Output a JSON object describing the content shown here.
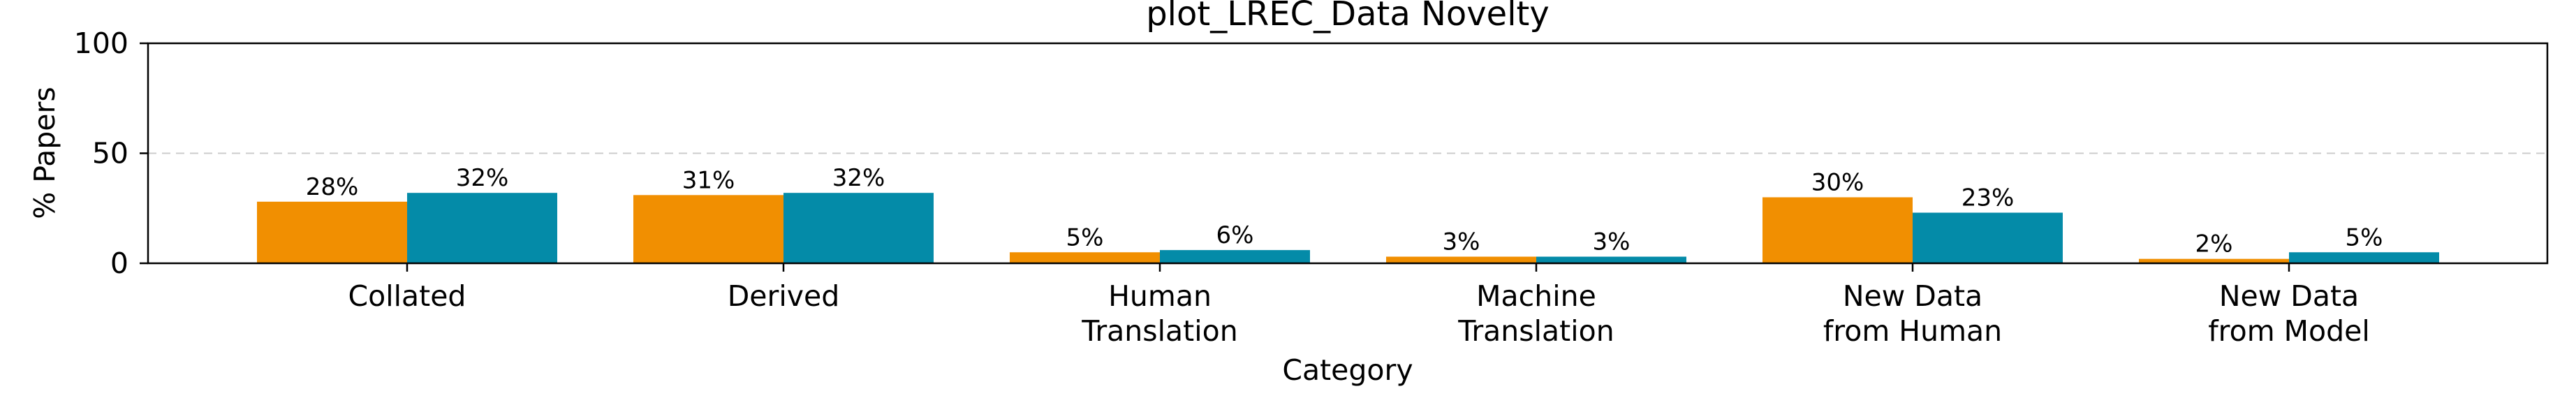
{
  "chart_data": {
    "type": "bar",
    "title": "plot_LREC_Data Novelty",
    "xlabel": "Category",
    "ylabel": "% Papers",
    "ylim": [
      0,
      100
    ],
    "yticks": [
      0,
      50,
      100
    ],
    "grid": "dashed horizontal at 50",
    "categories": [
      [
        "Collated"
      ],
      [
        "Derived"
      ],
      [
        "Human",
        "Translation"
      ],
      [
        "Machine",
        "Translation"
      ],
      [
        "New Data",
        "from Human"
      ],
      [
        "New Data",
        "from Model"
      ]
    ],
    "series": [
      {
        "color": "#F18F01",
        "values": [
          28,
          31,
          5,
          3,
          30,
          2
        ],
        "labels": [
          "28%",
          "31%",
          "5%",
          "3%",
          "30%",
          "2%"
        ]
      },
      {
        "color": "#048BA8",
        "values": [
          32,
          32,
          6,
          3,
          23,
          5
        ],
        "labels": [
          "32%",
          "32%",
          "6%",
          "3%",
          "23%",
          "5%"
        ]
      }
    ]
  }
}
